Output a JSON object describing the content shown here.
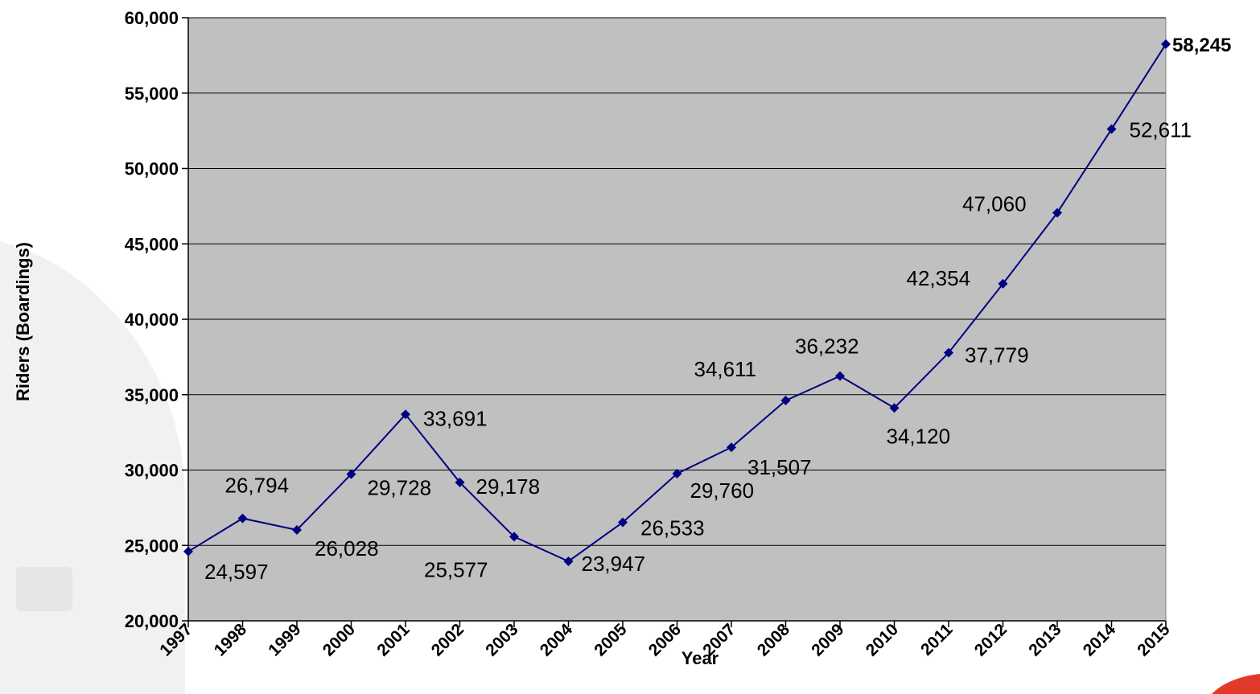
{
  "chart_data": {
    "type": "line",
    "xlabel": "Year",
    "ylabel": "Riders (Boardings)",
    "ylim": [
      20000,
      60000
    ],
    "y_ticks": [
      20000,
      25000,
      30000,
      35000,
      40000,
      45000,
      50000,
      55000,
      60000
    ],
    "y_tick_labels": [
      "20,000",
      "25,000",
      "30,000",
      "35,000",
      "40,000",
      "45,000",
      "50,000",
      "55,000",
      "60,000"
    ],
    "grid": true,
    "legend": "none",
    "categories": [
      "1997",
      "1998",
      "1999",
      "2000",
      "2001",
      "2002",
      "2003",
      "2004",
      "2005",
      "2006",
      "2007",
      "2008",
      "2009",
      "2010",
      "2011",
      "2012",
      "2013",
      "2014",
      "2015"
    ],
    "series": [
      {
        "values": [
          24597,
          26794,
          26028,
          29728,
          33691,
          29178,
          25577,
          23947,
          26533,
          29760,
          31507,
          34611,
          36232,
          34120,
          37779,
          42354,
          47060,
          52611,
          58245
        ],
        "data_labels": [
          "24,597",
          "26,794",
          "26,028",
          "29,728",
          "33,691",
          "29,178",
          "25,577",
          "23,947",
          "26,533",
          "29,760",
          "31,507",
          "34,611",
          "36,232",
          "34,120",
          "37,779",
          "42,354",
          "47,060",
          "52,611",
          "58,245"
        ],
        "color": "#000080"
      }
    ],
    "plot_background": "#c0c0c0",
    "gridline_color": "#000000"
  }
}
